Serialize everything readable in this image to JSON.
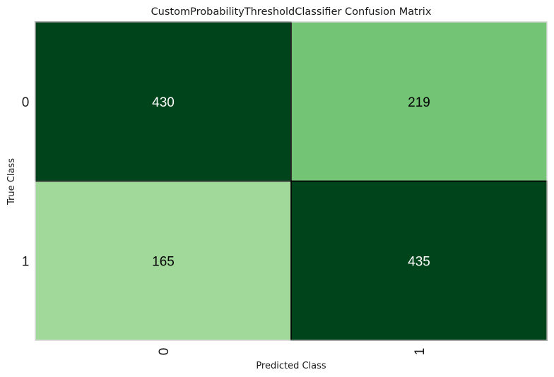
{
  "chart_data": {
    "type": "heatmap",
    "title": "CustomProbabilityThresholdClassifier Confusion Matrix",
    "xlabel": "Predicted Class",
    "ylabel": "True Class",
    "x_categories": [
      "0",
      "1"
    ],
    "y_categories": [
      "0",
      "1"
    ],
    "values": [
      [
        430,
        219
      ],
      [
        165,
        435
      ]
    ],
    "colormap": "Greens",
    "cell_colors": [
      [
        "#00441b",
        "#74c476"
      ],
      [
        "#a1d99b",
        "#00441b"
      ]
    ],
    "cell_text_colors": [
      [
        "#ffffff",
        "#000000"
      ],
      [
        "#000000",
        "#ffffff"
      ]
    ],
    "grid": false,
    "legend": "none"
  }
}
